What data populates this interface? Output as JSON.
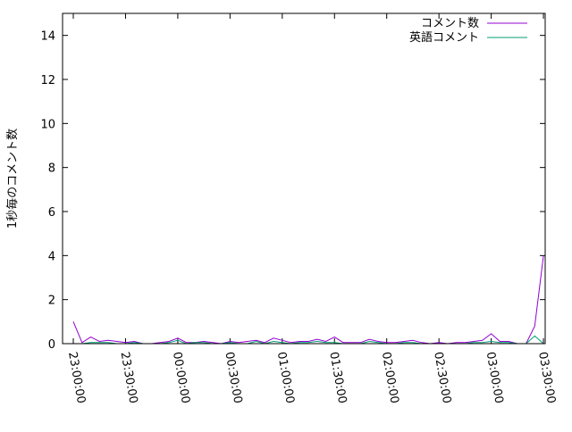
{
  "chart_data": {
    "type": "line",
    "title": "",
    "xlabel": "",
    "ylabel": "1秒毎のコメント数",
    "ylim": [
      0,
      15
    ],
    "yticks": [
      0,
      2,
      4,
      6,
      8,
      10,
      12,
      14
    ],
    "xlim": [
      "22:53:50",
      "03:31:00"
    ],
    "xticks": [
      "23:00:00",
      "23:30:00",
      "00:00:00",
      "00:30:00",
      "01:00:00",
      "01:30:00",
      "02:00:00",
      "02:30:00",
      "03:00:00",
      "03:30:00"
    ],
    "grid": false,
    "legend": "top-right",
    "x": [
      "23:00",
      "23:05",
      "23:10",
      "23:15",
      "23:20",
      "23:25",
      "23:30",
      "23:35",
      "23:40",
      "23:45",
      "23:50",
      "23:55",
      "00:00",
      "00:05",
      "00:10",
      "00:15",
      "00:20",
      "00:25",
      "00:30",
      "00:35",
      "00:40",
      "00:45",
      "00:50",
      "00:55",
      "01:00",
      "01:05",
      "01:10",
      "01:15",
      "01:20",
      "01:25",
      "01:30",
      "01:35",
      "01:40",
      "01:45",
      "01:50",
      "01:55",
      "02:00",
      "02:05",
      "02:10",
      "02:15",
      "02:20",
      "02:25",
      "02:30",
      "02:35",
      "02:40",
      "02:45",
      "02:50",
      "02:55",
      "03:00",
      "03:05",
      "03:10",
      "03:15",
      "03:20",
      "03:25",
      "03:30"
    ],
    "series": [
      {
        "name": "コメント数",
        "color": "#9400d3",
        "values": [
          1.0,
          0.05,
          0.3,
          0.1,
          0.15,
          0.1,
          0.05,
          0.1,
          0,
          0,
          0.05,
          0.1,
          0.25,
          0.05,
          0.05,
          0.1,
          0.05,
          0,
          0.1,
          0.05,
          0.1,
          0.15,
          0.05,
          0.25,
          0.15,
          0.05,
          0.1,
          0.1,
          0.2,
          0.1,
          0.3,
          0.05,
          0.05,
          0.05,
          0.2,
          0.1,
          0.05,
          0.05,
          0.1,
          0.15,
          0.05,
          0,
          0.05,
          0,
          0.05,
          0.05,
          0.1,
          0.15,
          0.45,
          0.1,
          0.1,
          0,
          0,
          0.8,
          4.0
        ]
      },
      {
        "name": "英語コメント",
        "color": "#009e73",
        "values": [
          0,
          0,
          0.05,
          0.05,
          0.05,
          0,
          0,
          0.05,
          0,
          0,
          0,
          0.05,
          0.15,
          0,
          0.05,
          0.05,
          0,
          0,
          0.05,
          0,
          0,
          0.1,
          0,
          0.1,
          0.05,
          0,
          0.05,
          0.05,
          0.1,
          0.05,
          0.05,
          0,
          0,
          0,
          0.1,
          0.05,
          0,
          0,
          0.05,
          0.05,
          0,
          0,
          0,
          0,
          0,
          0,
          0.05,
          0.05,
          0.1,
          0.05,
          0.05,
          0,
          0,
          0.35,
          0
        ]
      }
    ]
  }
}
